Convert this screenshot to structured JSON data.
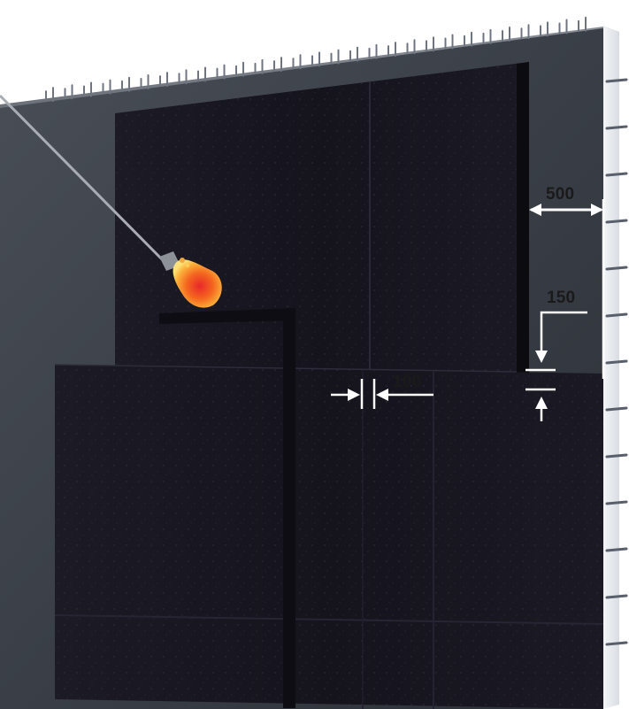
{
  "figure": {
    "dimensions": [
      {
        "id": "sheet-offset-from-wall-edge",
        "label": "500"
      },
      {
        "id": "sheet-overlap",
        "label": "150"
      },
      {
        "id": "joint-gap",
        "label": "100"
      }
    ]
  },
  "colors": {
    "concrete_front": "#3a3f47",
    "concrete_side": "#e8ebee",
    "membrane": "#16141e",
    "torch_flame": "#f24a1e",
    "dimension_line": "#ffffff",
    "label_text": "#1a1a1a"
  },
  "icons": [
    "gas-torch-icon",
    "flame-icon",
    "rebar-starter-bars"
  ]
}
